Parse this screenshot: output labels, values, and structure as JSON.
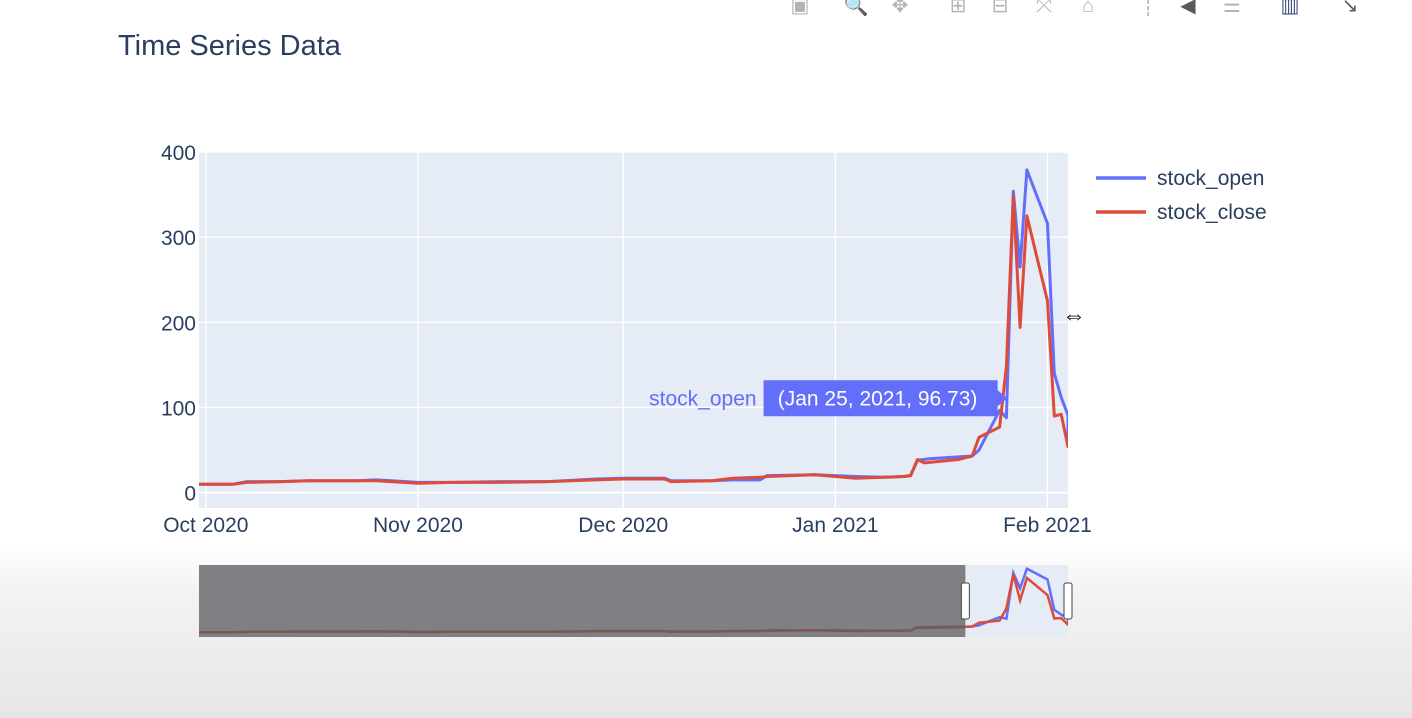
{
  "toolbar": {
    "icons": [
      {
        "name": "camera-icon",
        "glyph": "▣",
        "active": false
      },
      {
        "name": "zoom-icon",
        "glyph": "🔍",
        "active": false
      },
      {
        "name": "pan-icon",
        "glyph": "✥",
        "active": false
      },
      {
        "name": "zoom-in-icon",
        "glyph": "⊞",
        "active": false
      },
      {
        "name": "zoom-out-icon",
        "glyph": "⊟",
        "active": false
      },
      {
        "name": "autoscale-icon",
        "glyph": "⤧",
        "active": false
      },
      {
        "name": "reset-axes-icon",
        "glyph": "⌂",
        "active": false
      },
      {
        "name": "spike-lines-icon",
        "glyph": "┊",
        "active": false
      },
      {
        "name": "hover-closest-icon",
        "glyph": "◀",
        "active": false
      },
      {
        "name": "hover-compare-icon",
        "glyph": "☰",
        "active": false
      },
      {
        "name": "plotly-logo-icon",
        "glyph": "▥",
        "active": true
      },
      {
        "name": "expand-icon",
        "glyph": "↘",
        "active": false
      }
    ]
  },
  "chart_data": {
    "type": "line",
    "title": "Time Series Data",
    "x_range": [
      "2020-09-30",
      "2021-02-04"
    ],
    "y_range": [
      -18,
      400
    ],
    "y_ticks": [
      0,
      100,
      200,
      300,
      400
    ],
    "x_ticks": [
      {
        "date": "2020-10-01",
        "label": "Oct 2020"
      },
      {
        "date": "2020-11-01",
        "label": "Nov 2020"
      },
      {
        "date": "2020-12-01",
        "label": "Dec 2020"
      },
      {
        "date": "2021-01-01",
        "label": "Jan 2021"
      },
      {
        "date": "2021-02-01",
        "label": "Feb 2021"
      }
    ],
    "grid": true,
    "legend_position": "top-right",
    "plot_bg": "#e5ecf6",
    "series": [
      {
        "name": "stock_open",
        "color": "#636efa",
        "points": [
          [
            "2020-09-30",
            10
          ],
          [
            "2020-10-05",
            10
          ],
          [
            "2020-10-07",
            13
          ],
          [
            "2020-10-12",
            13
          ],
          [
            "2020-10-16",
            14
          ],
          [
            "2020-10-23",
            14
          ],
          [
            "2020-10-26",
            15
          ],
          [
            "2020-11-01",
            12
          ],
          [
            "2020-11-06",
            12
          ],
          [
            "2020-11-13",
            13
          ],
          [
            "2020-11-20",
            13
          ],
          [
            "2020-11-27",
            16
          ],
          [
            "2020-12-01",
            17
          ],
          [
            "2020-12-07",
            17
          ],
          [
            "2020-12-08",
            14
          ],
          [
            "2020-12-14",
            14
          ],
          [
            "2020-12-17",
            15
          ],
          [
            "2020-12-21",
            15
          ],
          [
            "2020-12-22",
            20
          ],
          [
            "2020-12-29",
            21
          ],
          [
            "2021-01-04",
            19
          ],
          [
            "2021-01-08",
            18
          ],
          [
            "2021-01-11",
            19
          ],
          [
            "2021-01-12",
            20
          ],
          [
            "2021-01-13",
            38
          ],
          [
            "2021-01-15",
            40
          ],
          [
            "2021-01-19",
            42
          ],
          [
            "2021-01-21",
            43
          ],
          [
            "2021-01-22",
            50
          ],
          [
            "2021-01-25",
            96.73
          ],
          [
            "2021-01-26",
            88
          ],
          [
            "2021-01-27",
            354
          ],
          [
            "2021-01-28",
            265
          ],
          [
            "2021-01-29",
            379
          ],
          [
            "2021-02-01",
            316
          ],
          [
            "2021-02-02",
            140
          ],
          [
            "2021-02-03",
            112
          ],
          [
            "2021-02-04",
            91
          ],
          [
            "2021-02-04",
            62
          ]
        ]
      },
      {
        "name": "stock_close",
        "color": "#dd4b3a",
        "points": [
          [
            "2020-09-30",
            10
          ],
          [
            "2020-10-05",
            10
          ],
          [
            "2020-10-07",
            12
          ],
          [
            "2020-10-12",
            13
          ],
          [
            "2020-10-16",
            14
          ],
          [
            "2020-10-23",
            14
          ],
          [
            "2020-10-26",
            14
          ],
          [
            "2020-11-01",
            11
          ],
          [
            "2020-11-06",
            12
          ],
          [
            "2020-11-13",
            12
          ],
          [
            "2020-11-20",
            13
          ],
          [
            "2020-11-27",
            15
          ],
          [
            "2020-12-01",
            16
          ],
          [
            "2020-12-07",
            16
          ],
          [
            "2020-12-08",
            13
          ],
          [
            "2020-12-14",
            14
          ],
          [
            "2020-12-17",
            17
          ],
          [
            "2020-12-21",
            18
          ],
          [
            "2020-12-22",
            19
          ],
          [
            "2020-12-29",
            21
          ],
          [
            "2021-01-04",
            17
          ],
          [
            "2021-01-08",
            18
          ],
          [
            "2021-01-11",
            19
          ],
          [
            "2021-01-12",
            20
          ],
          [
            "2021-01-13",
            39
          ],
          [
            "2021-01-14",
            35
          ],
          [
            "2021-01-19",
            39
          ],
          [
            "2021-01-21",
            43
          ],
          [
            "2021-01-22",
            65
          ],
          [
            "2021-01-25",
            77
          ],
          [
            "2021-01-26",
            148
          ],
          [
            "2021-01-27",
            348
          ],
          [
            "2021-01-28",
            194
          ],
          [
            "2021-01-29",
            325
          ],
          [
            "2021-02-01",
            225
          ],
          [
            "2021-02-02",
            90
          ],
          [
            "2021-02-03",
            92
          ],
          [
            "2021-02-04",
            54
          ],
          [
            "2021-02-04",
            57
          ]
        ]
      }
    ],
    "hover": {
      "series": "stock_open",
      "date": "2021-01-25",
      "value": 96.73,
      "name_label": "stock_open",
      "text": "(Jan 25, 2021, 96.73)"
    },
    "rangeslider": {
      "selected_from": "2021-01-20",
      "selected_to": "2021-02-04",
      "full_from": "2020-09-30",
      "full_to": "2021-02-04"
    }
  }
}
